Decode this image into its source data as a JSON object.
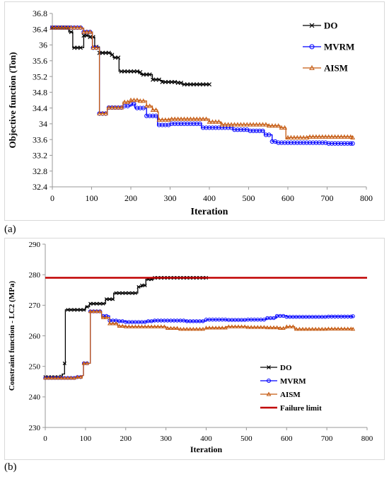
{
  "panel_labels": [
    "(a)",
    "(b)"
  ],
  "chart_data": [
    {
      "type": "line",
      "xlabel": "Iteration",
      "ylabel": "Objective function (Ton)",
      "xlim": [
        0,
        800
      ],
      "ylim": [
        32.4,
        36.8
      ],
      "x_ticks": [
        "0",
        "100",
        "200",
        "300",
        "400",
        "500",
        "600",
        "700",
        "800"
      ],
      "y_ticks": [
        "32.4",
        "32.8",
        "33.2",
        "33.6",
        "34",
        "34.4",
        "34.8",
        "35.2",
        "35.6",
        "36",
        "36.4",
        "36.8"
      ],
      "grid": false,
      "legend_position": "top-right",
      "series": [
        {
          "name": "DO",
          "color": "#000000",
          "marker": "x",
          "x": [
            0,
            40,
            42,
            50,
            52,
            80,
            95,
            105,
            108,
            118,
            120,
            150,
            155,
            168,
            170,
            220,
            225,
            250,
            255,
            275,
            280,
            320,
            330,
            400
          ],
          "y": [
            36.44,
            36.44,
            36.33,
            36.33,
            35.93,
            36.24,
            36.2,
            36.2,
            35.95,
            35.95,
            35.8,
            35.75,
            35.68,
            35.68,
            35.33,
            35.31,
            35.25,
            35.25,
            35.12,
            35.1,
            35.06,
            35.04,
            35.0,
            35.0
          ]
        },
        {
          "name": "MVRM",
          "color": "#0000ff",
          "marker": "o",
          "x": [
            0,
            75,
            80,
            100,
            102,
            118,
            120,
            138,
            140,
            180,
            200,
            210,
            240,
            265,
            268,
            300,
            340,
            380,
            420,
            460,
            500,
            540,
            560,
            570,
            600,
            650,
            700,
            765
          ],
          "y": [
            36.44,
            36.43,
            36.33,
            36.33,
            35.93,
            35.93,
            34.26,
            34.26,
            34.41,
            34.45,
            34.5,
            34.4,
            34.2,
            34.2,
            33.97,
            34.0,
            34.0,
            33.9,
            33.9,
            33.85,
            33.82,
            33.72,
            33.55,
            33.52,
            33.52,
            33.52,
            33.5,
            33.5
          ]
        },
        {
          "name": "AISM",
          "color": "#c55a11",
          "marker": "triangle",
          "x": [
            0,
            75,
            80,
            100,
            102,
            118,
            120,
            138,
            140,
            180,
            200,
            220,
            240,
            255,
            268,
            270,
            300,
            350,
            400,
            430,
            500,
            550,
            580,
            595,
            600,
            650,
            700,
            765
          ],
          "y": [
            36.44,
            36.43,
            36.33,
            36.33,
            35.93,
            35.93,
            34.26,
            34.26,
            34.41,
            34.55,
            34.6,
            34.58,
            34.45,
            34.35,
            34.3,
            34.1,
            34.12,
            34.12,
            34.05,
            33.98,
            33.98,
            33.95,
            33.9,
            33.62,
            33.65,
            33.67,
            33.67,
            33.65
          ]
        }
      ]
    },
    {
      "type": "line",
      "xlabel": "Iteration",
      "ylabel": "Constraint function - LC2 (MPa)",
      "xlim": [
        0,
        800
      ],
      "ylim": [
        230,
        290
      ],
      "x_ticks": [
        "0",
        "100",
        "200",
        "300",
        "400",
        "500",
        "600",
        "700",
        "800"
      ],
      "y_ticks": [
        "230",
        "240",
        "250",
        "260",
        "270",
        "280",
        "290"
      ],
      "grid": false,
      "legend_position": "bottom-right",
      "series": [
        {
          "name": "DO",
          "color": "#000000",
          "marker": "x",
          "x": [
            0,
            40,
            42,
            48,
            50,
            95,
            100,
            110,
            115,
            150,
            155,
            170,
            175,
            230,
            240,
            250,
            255,
            270,
            275,
            400
          ],
          "y": [
            246.5,
            246.7,
            247.5,
            251.0,
            268.5,
            268.5,
            269.5,
            270.5,
            270.5,
            272.0,
            272.0,
            274.0,
            274.0,
            276.0,
            276.5,
            278.5,
            278.5,
            279.0,
            279.0,
            279.0
          ]
        },
        {
          "name": "MVRM",
          "color": "#0000ff",
          "marker": "o",
          "x": [
            0,
            80,
            92,
            95,
            110,
            112,
            130,
            140,
            160,
            180,
            200,
            250,
            270,
            300,
            350,
            400,
            450,
            500,
            550,
            575,
            600,
            700,
            765
          ],
          "y": [
            246.2,
            246.5,
            247.0,
            251.0,
            251.0,
            268.0,
            268.0,
            266.5,
            265.0,
            264.8,
            264.5,
            264.8,
            265.0,
            265.0,
            264.8,
            265.3,
            265.2,
            265.3,
            265.8,
            266.5,
            266.2,
            266.3,
            266.4
          ]
        },
        {
          "name": "AISM",
          "color": "#c55a11",
          "marker": "triangle",
          "x": [
            0,
            80,
            92,
            95,
            110,
            112,
            130,
            140,
            160,
            180,
            200,
            250,
            300,
            330,
            400,
            450,
            500,
            550,
            580,
            600,
            620,
            700,
            765
          ],
          "y": [
            246.2,
            246.5,
            247.0,
            251.0,
            251.0,
            268.0,
            268.0,
            266.0,
            264.0,
            263.2,
            263.0,
            263.0,
            262.5,
            262.2,
            262.6,
            263.0,
            262.8,
            262.7,
            262.5,
            263.0,
            262.2,
            262.3,
            262.2
          ]
        },
        {
          "name": "Failure limit",
          "color": "#c00000",
          "marker": "none",
          "x": [
            0,
            800
          ],
          "y": [
            279,
            279
          ]
        }
      ]
    }
  ]
}
